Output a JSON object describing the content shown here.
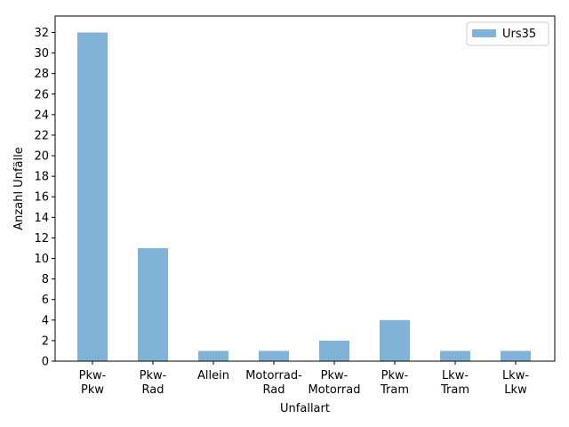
{
  "chart_data": {
    "type": "bar",
    "categories": [
      [
        "Pkw-",
        "Pkw"
      ],
      [
        "Pkw-",
        "Rad"
      ],
      [
        "Allein"
      ],
      [
        "Motorrad-",
        "Rad"
      ],
      [
        "Pkw-",
        "Motorrad"
      ],
      [
        "Pkw-",
        "Tram"
      ],
      [
        "Lkw-",
        "Tram"
      ],
      [
        "Lkw-",
        "Lkw"
      ]
    ],
    "series": [
      {
        "name": "Urs35",
        "values": [
          32,
          11,
          1,
          1,
          2,
          4,
          1,
          1
        ],
        "color": "#80b3d6"
      }
    ],
    "xlabel": "Unfallart",
    "ylabel": "Anzahl Unfälle",
    "ylim": [
      0,
      33.6
    ],
    "yticks": [
      0,
      2,
      4,
      6,
      8,
      10,
      12,
      14,
      16,
      18,
      20,
      22,
      24,
      26,
      28,
      30,
      32
    ],
    "grid": false,
    "legend_position": "top-right"
  }
}
